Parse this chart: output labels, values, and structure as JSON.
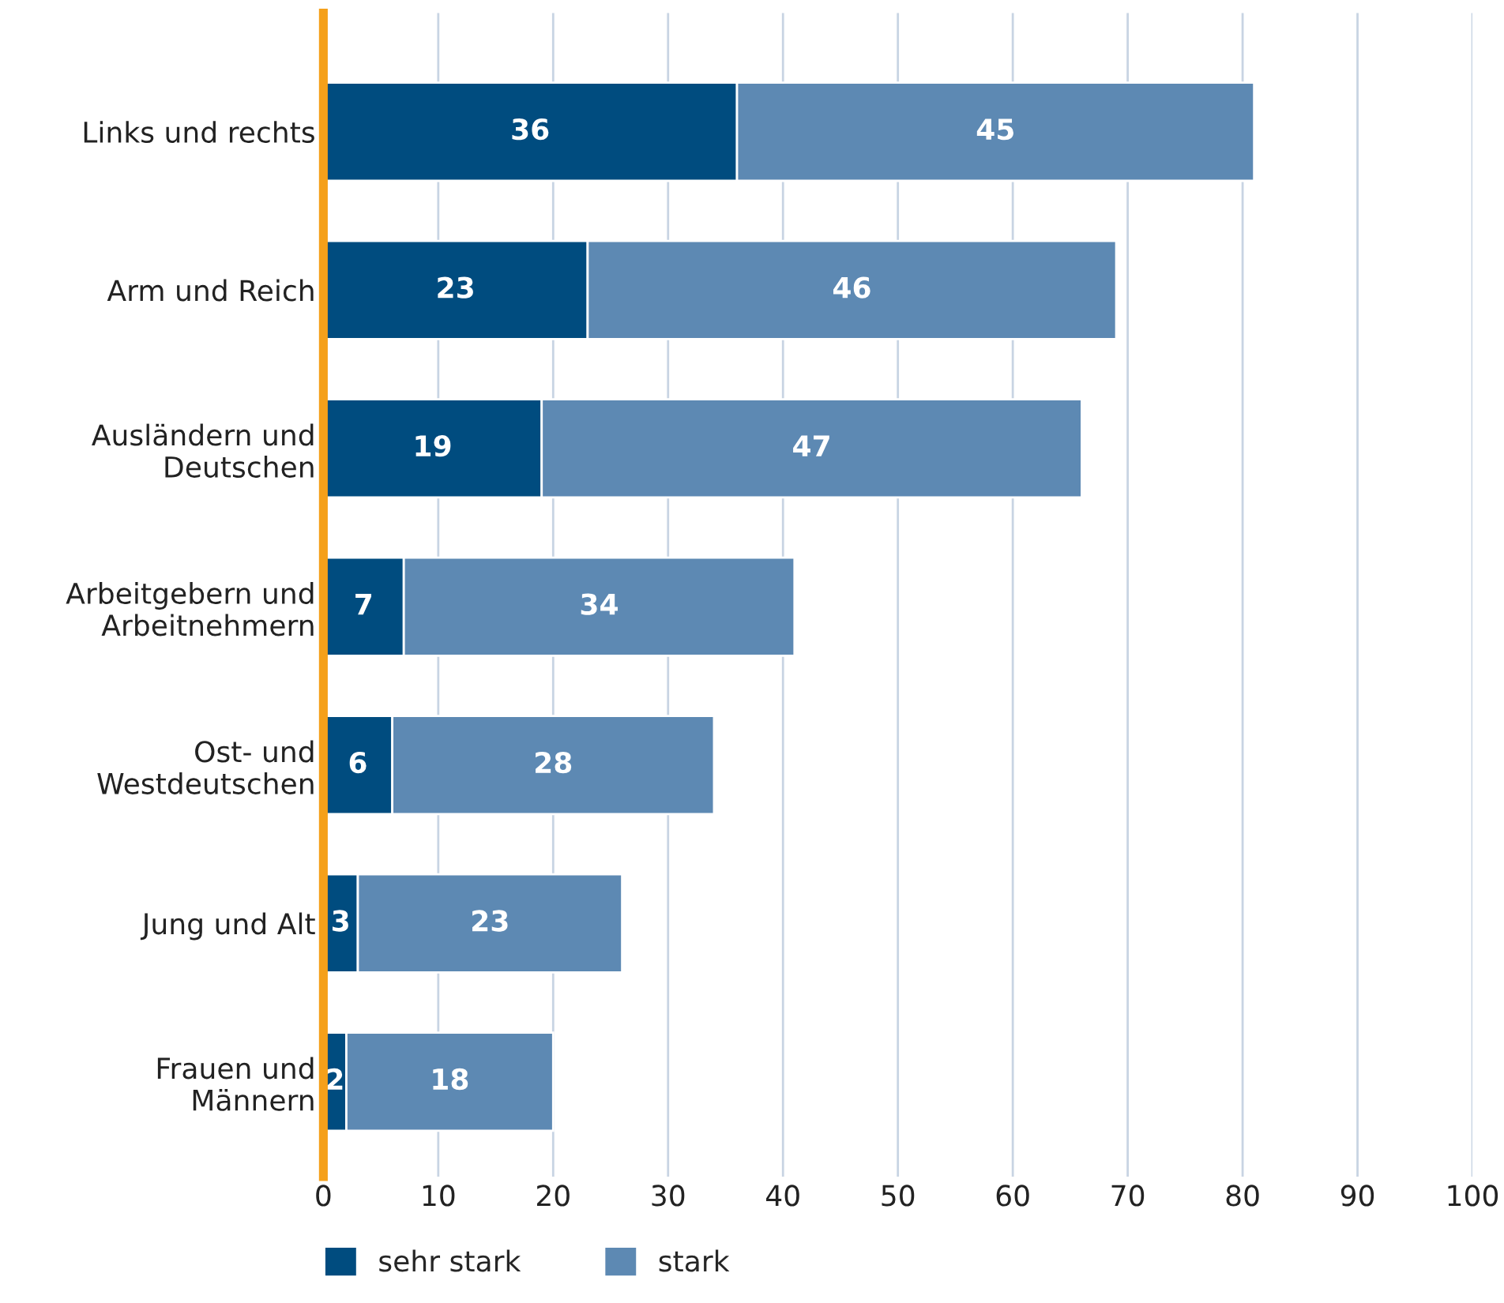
{
  "chart_data": {
    "type": "bar",
    "orientation": "horizontal",
    "stacked": true,
    "data_labels": true,
    "categories": [
      "Links und rechts",
      "Arm und Reich",
      "Ausländern und\nDeutschen",
      "Arbeitgebern und\nArbeitnehmern",
      "Ost- und\nWestdeutschen",
      "Jung und Alt",
      "Frauen und\nMännern"
    ],
    "series": [
      {
        "name": "sehr stark",
        "color": "#004c7f",
        "values": [
          36,
          23,
          19,
          7,
          6,
          3,
          2
        ]
      },
      {
        "name": "stark",
        "color": "#5d89b3",
        "values": [
          45,
          46,
          47,
          34,
          28,
          23,
          18
        ]
      }
    ],
    "xlim": [
      0,
      100
    ],
    "xticks": [
      0,
      10,
      20,
      30,
      40,
      50,
      60,
      70,
      80,
      90,
      100
    ],
    "grid": "x",
    "legend": "bottom left"
  }
}
